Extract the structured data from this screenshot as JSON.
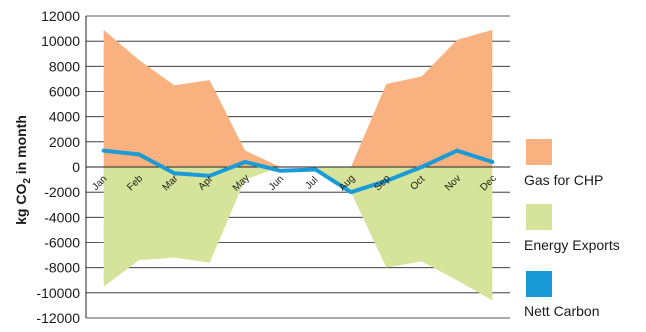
{
  "chart_data": {
    "type": "area",
    "title": "",
    "xlabel": "",
    "ylabel": "kg CO2 in month",
    "ylim": [
      -12000,
      12000
    ],
    "y_ticks": [
      -12000,
      -10000,
      -8000,
      -6000,
      -4000,
      -2000,
      0,
      2000,
      4000,
      6000,
      8000,
      10000,
      12000
    ],
    "grid": "horizontal",
    "legend_position": "right",
    "categories": [
      "Jan",
      "Feb",
      "Mar",
      "Apr",
      "May",
      "Jun",
      "Jul",
      "Aug",
      "Sep",
      "Oct",
      "Nov",
      "Dec"
    ],
    "series": [
      {
        "name": "Gas for CHP",
        "type": "area",
        "color": "#f9b27f",
        "values": [
          10900,
          8500,
          6500,
          6900,
          1300,
          0,
          0,
          0,
          6600,
          7200,
          10100,
          10900
        ]
      },
      {
        "name": "Energy Exports",
        "type": "area",
        "color": "#d6e39a",
        "values": [
          -9500,
          -7400,
          -7200,
          -7600,
          -1000,
          0,
          0,
          -2000,
          -8000,
          -7500,
          -9000,
          -10600
        ]
      },
      {
        "name": "Nett Carbon",
        "type": "line",
        "color": "#1a9ad6",
        "values": [
          1300,
          1000,
          -500,
          -700,
          400,
          -300,
          -200,
          -2000,
          -1100,
          0,
          1300,
          400
        ]
      }
    ]
  }
}
